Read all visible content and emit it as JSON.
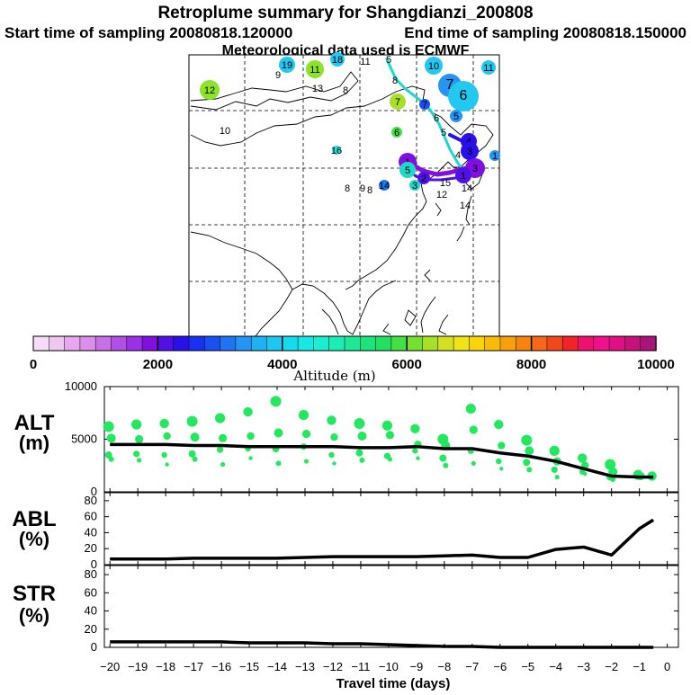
{
  "header": {
    "title": "Retroplume summary for Shangdianzi_200808",
    "start_label": "Start time of sampling 20080818.120000",
    "end_label": "End time of sampling 20080818.150000",
    "met_label": "Meteorological data used is ECMWF"
  },
  "colorbar": {
    "label": "Altitude (m)",
    "ticks": [
      0,
      2000,
      4000,
      6000,
      8000,
      10000
    ],
    "colors": [
      "#f6dcf6",
      "#eec8f0",
      "#e6a8ee",
      "#d890ea",
      "#c870e6",
      "#b050e6",
      "#9a30e8",
      "#8010e0",
      "#5010e6",
      "#2a10e8",
      "#1a30f0",
      "#1850f2",
      "#1e74f4",
      "#2494f6",
      "#20b0f6",
      "#1cc8f0",
      "#14dcee",
      "#16e8e4",
      "#18eed0",
      "#1aeeb4",
      "#1ce898",
      "#1ce47c",
      "#24e060",
      "#44e044",
      "#74e030",
      "#a8e028",
      "#d4e020",
      "#f0e414",
      "#f8d408",
      "#f8bc08",
      "#f8a008",
      "#f88410",
      "#f86818",
      "#f04818",
      "#f02428",
      "#f01070",
      "#f0108c",
      "#e01084",
      "#c8107c",
      "#a81478"
    ]
  },
  "map": {
    "labels": [
      {
        "t": "19",
        "x": 319,
        "y": 72,
        "c": "#22c8f0",
        "r": 9
      },
      {
        "t": "9",
        "x": 309,
        "y": 83,
        "c": "#c8e828",
        "r": 0
      },
      {
        "t": "11",
        "x": 350,
        "y": 77,
        "c": "#8ce428",
        "r": 10
      },
      {
        "t": "18",
        "x": 375,
        "y": 66,
        "c": "#22c8f0",
        "r": 8
      },
      {
        "t": "11",
        "x": 406,
        "y": 68,
        "c": "#1ee0e0",
        "r": 0
      },
      {
        "t": "5",
        "x": 432,
        "y": 66,
        "c": "#20d8c8",
        "r": 0
      },
      {
        "t": "10",
        "x": 482,
        "y": 73,
        "c": "#22c8f0",
        "r": 10
      },
      {
        "t": "11",
        "x": 543,
        "y": 75,
        "c": "#22c8f0",
        "r": 8
      },
      {
        "t": "12",
        "x": 233,
        "y": 100,
        "c": "#8ce428",
        "r": 11
      },
      {
        "t": "13",
        "x": 353,
        "y": 98,
        "c": "#1ee0e0",
        "r": 0
      },
      {
        "t": "8",
        "x": 384,
        "y": 100,
        "c": "#44e044",
        "r": 0
      },
      {
        "t": "8",
        "x": 439,
        "y": 89,
        "c": "#20d8c8",
        "r": 0
      },
      {
        "t": "7",
        "x": 500,
        "y": 95,
        "c": "#2494f6",
        "r": 13
      },
      {
        "t": "6",
        "x": 515,
        "y": 107,
        "c": "#22c8f0",
        "r": 17
      },
      {
        "t": "7",
        "x": 442,
        "y": 113,
        "c": "#a8e028",
        "r": 9
      },
      {
        "t": "7",
        "x": 472,
        "y": 116,
        "c": "#1850f2",
        "r": 6
      },
      {
        "t": "6",
        "x": 485,
        "y": 131,
        "c": "#22c8f0",
        "r": 0
      },
      {
        "t": "5",
        "x": 507,
        "y": 129,
        "c": "#2494f6",
        "r": 7
      },
      {
        "t": "10",
        "x": 250,
        "y": 145,
        "c": "#c8e828",
        "r": 0
      },
      {
        "t": "6",
        "x": 441,
        "y": 147,
        "c": "#44e044",
        "r": 6
      },
      {
        "t": "5",
        "x": 493,
        "y": 147,
        "c": "#22c8f0",
        "r": 0
      },
      {
        "t": "4",
        "x": 521,
        "y": 157,
        "c": "#2a10e8",
        "r": 9
      },
      {
        "t": "3",
        "x": 522,
        "y": 168,
        "c": "#2a10e8",
        "r": 10
      },
      {
        "t": "16",
        "x": 374,
        "y": 167,
        "c": "#1ee0e0",
        "r": 5
      },
      {
        "t": "4",
        "x": 509,
        "y": 172,
        "c": "#20d8c8",
        "r": 0
      },
      {
        "t": "1",
        "x": 550,
        "y": 173,
        "c": "#2494f6",
        "r": 6
      },
      {
        "t": "1",
        "x": 453,
        "y": 180,
        "c": "#8010e0",
        "r": 10
      },
      {
        "t": "3",
        "x": 528,
        "y": 187,
        "c": "#8010e0",
        "r": 11
      },
      {
        "t": "5",
        "x": 453,
        "y": 189,
        "c": "#20d8c8",
        "r": 9
      },
      {
        "t": "2",
        "x": 471,
        "y": 198,
        "c": "#5010e6",
        "r": 7
      },
      {
        "t": "15",
        "x": 495,
        "y": 203,
        "c": "#1e74f4",
        "r": 0
      },
      {
        "t": "1",
        "x": 515,
        "y": 195,
        "c": "#5010e6",
        "r": 9
      },
      {
        "t": "3",
        "x": 461,
        "y": 206,
        "c": "#20d8c8",
        "r": 6
      },
      {
        "t": "8",
        "x": 386,
        "y": 209,
        "c": "#22c8f0",
        "r": 0
      },
      {
        "t": "9",
        "x": 403,
        "y": 209,
        "c": "#22c8f0",
        "r": 0
      },
      {
        "t": "8",
        "x": 411,
        "y": 211,
        "c": "#22c8f0",
        "r": 0
      },
      {
        "t": "14",
        "x": 427,
        "y": 206,
        "c": "#1e74f4",
        "r": 6
      },
      {
        "t": "14",
        "x": 519,
        "y": 209,
        "c": "#1e74f4",
        "r": 0
      },
      {
        "t": "12",
        "x": 491,
        "y": 216,
        "c": "#22c8f0",
        "r": 0
      },
      {
        "t": "14",
        "x": 517,
        "y": 228,
        "c": "#22c8f0",
        "r": 0
      }
    ]
  },
  "chart_data": [
    {
      "type": "scatter+line",
      "panel": "ALT",
      "ylabel": "ALT (m)",
      "ylim": [
        0,
        10000
      ],
      "yticks": [
        0,
        5000,
        10000
      ],
      "line_x": [
        -20,
        -19,
        -18,
        -17,
        -16,
        -15,
        -14,
        -13,
        -12,
        -11,
        -10,
        -9,
        -8,
        -7,
        -6,
        -5,
        -4,
        -3,
        -2,
        -1,
        -0.5
      ],
      "line_y": [
        4500,
        4500,
        4500,
        4400,
        4400,
        4300,
        4300,
        4300,
        4300,
        4200,
        4200,
        4300,
        4100,
        4100,
        3700,
        3400,
        2900,
        2200,
        1500,
        1400,
        1400
      ],
      "clusters": [
        {
          "x": -20,
          "y": [
            6200,
            5100,
            3500,
            3100
          ]
        },
        {
          "x": -19,
          "y": [
            6400,
            5000,
            3600,
            3000
          ]
        },
        {
          "x": -18,
          "y": [
            6500,
            5300,
            3500,
            2600
          ]
        },
        {
          "x": -17,
          "y": [
            6700,
            5200,
            3600,
            3100
          ]
        },
        {
          "x": -16,
          "y": [
            7000,
            5100,
            4000,
            2600
          ]
        },
        {
          "x": -15,
          "y": [
            7600,
            5300,
            4100,
            3200
          ]
        },
        {
          "x": -14,
          "y": [
            8600,
            5600,
            4100,
            2700
          ]
        },
        {
          "x": -13,
          "y": [
            7300,
            5500,
            4300,
            2900
          ]
        },
        {
          "x": -12,
          "y": [
            6800,
            5200,
            3500,
            2700
          ]
        },
        {
          "x": -11,
          "y": [
            6500,
            5300,
            3700,
            3000
          ]
        },
        {
          "x": -10,
          "y": [
            6300,
            5400,
            3400,
            3100
          ]
        },
        {
          "x": -9,
          "y": [
            6000,
            4500,
            3900,
            3200
          ]
        },
        {
          "x": -8,
          "y": [
            5000,
            4400,
            3200,
            2500
          ]
        },
        {
          "x": -7,
          "y": [
            7900,
            5900,
            3900,
            2700
          ]
        },
        {
          "x": -6,
          "y": [
            6400,
            4400,
            2900,
            2200
          ]
        },
        {
          "x": -5,
          "y": [
            4900,
            3900,
            2800,
            2100
          ]
        },
        {
          "x": -4,
          "y": [
            3900,
            2900,
            2100,
            1400
          ]
        },
        {
          "x": -3,
          "y": [
            3200,
            2500,
            1900,
            1700
          ]
        },
        {
          "x": -2,
          "y": [
            2600,
            1900,
            1400,
            1200
          ]
        },
        {
          "x": -1,
          "y": [
            1600,
            1500
          ]
        },
        {
          "x": -0.5,
          "y": [
            1500
          ]
        }
      ]
    },
    {
      "type": "line",
      "panel": "ABL",
      "ylabel": "ABL (%)",
      "ylim": [
        0,
        90
      ],
      "yticks": [
        0,
        20,
        40,
        60,
        80
      ],
      "x": [
        -20,
        -19,
        -18,
        -17,
        -16,
        -15,
        -14,
        -13,
        -12,
        -11,
        -10,
        -9,
        -8,
        -7,
        -6,
        -5,
        -4,
        -3,
        -2,
        -1,
        -0.5
      ],
      "y": [
        7,
        7,
        7,
        8,
        8,
        8,
        8,
        9,
        10,
        10,
        10,
        10,
        11,
        12,
        9,
        9,
        19,
        22,
        12,
        45,
        56
      ]
    },
    {
      "type": "line",
      "panel": "STR",
      "ylabel": "STR (%)",
      "ylim": [
        0,
        90
      ],
      "yticks": [
        0,
        20,
        40,
        60,
        80
      ],
      "xlabel": "Travel time (days)",
      "xticks": [
        -20,
        -19,
        -18,
        -17,
        -16,
        -15,
        -14,
        -13,
        -12,
        -11,
        -10,
        -9,
        -8,
        -7,
        -6,
        -5,
        -4,
        -3,
        -2,
        -1,
        0
      ],
      "x": [
        -20,
        -19,
        -18,
        -17,
        -16,
        -15,
        -14,
        -13,
        -12,
        -11,
        -10,
        -9,
        -8,
        -7,
        -6,
        -5,
        -4,
        -3,
        -2,
        -1,
        -0.5
      ],
      "y": [
        6,
        6,
        6,
        6,
        6,
        5,
        5,
        5,
        4,
        4,
        3,
        2,
        1,
        1,
        0,
        0,
        0,
        0,
        0,
        0,
        0
      ]
    }
  ],
  "panel_labels": {
    "alt_a": "ALT",
    "alt_b": "(m)",
    "abl_a": "ABL",
    "abl_b": "(%)",
    "str_a": "STR",
    "str_b": "(%)"
  }
}
